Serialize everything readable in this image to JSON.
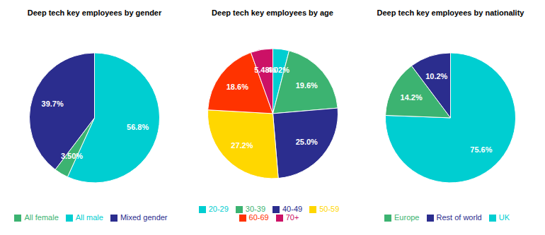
{
  "chart_data": [
    {
      "type": "pie",
      "title": "Deep tech key employees by gender",
      "categories": [
        "All male",
        "All female",
        "Mixed gender"
      ],
      "values": [
        56.8,
        3.5,
        39.7
      ],
      "value_labels": [
        "56.8%",
        "3.50%",
        "39.7%"
      ],
      "colors": [
        "#00CED1",
        "#3CB371",
        "#2B2D8E"
      ],
      "data_labels": true,
      "legend": "bottom"
    },
    {
      "type": "pie",
      "title": "Deep tech key employees by age",
      "categories": [
        "20-29",
        "30-39",
        "40-49",
        "50-59",
        "60-69",
        "70+"
      ],
      "values": [
        4.02,
        19.6,
        25.0,
        27.2,
        18.6,
        5.48
      ],
      "value_labels": [
        "4.02%",
        "19.6%",
        "25.0%",
        "27.2%",
        "18.6%",
        "5.48%"
      ],
      "colors": [
        "#00CED1",
        "#3CB371",
        "#2B2D8E",
        "#FFD700",
        "#FF3300",
        "#CC1166"
      ],
      "data_labels": true,
      "legend": "bottom"
    },
    {
      "type": "pie",
      "title": "Deep tech key employees by nationality",
      "categories": [
        "UK",
        "Europe",
        "Rest of world"
      ],
      "values": [
        75.6,
        14.2,
        10.2
      ],
      "value_labels": [
        "75.6%",
        "14.2%",
        "10.2%"
      ],
      "colors": [
        "#00CED1",
        "#3CB371",
        "#2B2D8E"
      ],
      "data_labels": true,
      "legend": "bottom"
    }
  ]
}
